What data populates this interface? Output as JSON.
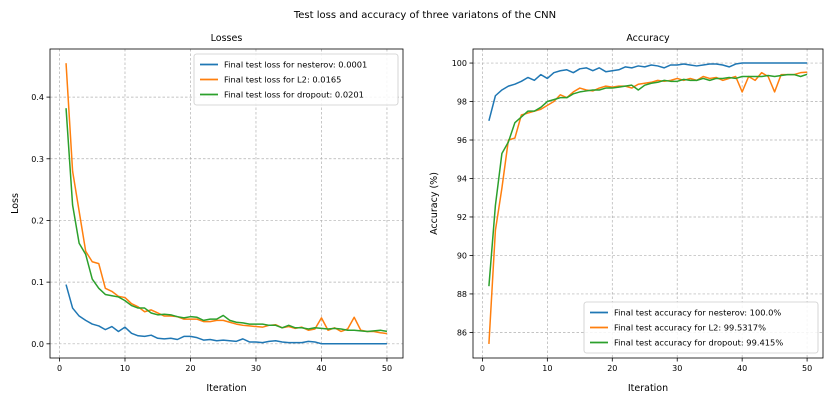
{
  "suptitle": "Test loss and accuracy of three variatons of the CNN",
  "colors": {
    "nesterov": "#1f77b4",
    "l2": "#ff7f0e",
    "dropout": "#2ca02c",
    "grid": "#b0b0b0"
  },
  "chart_data": [
    {
      "type": "line",
      "title": "Losses",
      "xlabel": "Iteration",
      "ylabel": "Loss",
      "xlim": [
        -1.45,
        52.45
      ],
      "ylim": [
        -0.023,
        0.478
      ],
      "xticks": [
        0,
        10,
        20,
        30,
        40,
        50
      ],
      "yticks": [
        0.0,
        0.1,
        0.2,
        0.3,
        0.4
      ],
      "ytick_labels": [
        "0.0",
        "0.1",
        "0.2",
        "0.3",
        "0.4"
      ],
      "grid": true,
      "legend": "upper right",
      "x": [
        1,
        2,
        3,
        4,
        5,
        6,
        7,
        8,
        9,
        10,
        11,
        12,
        13,
        14,
        15,
        16,
        17,
        18,
        19,
        20,
        21,
        22,
        23,
        24,
        25,
        26,
        27,
        28,
        29,
        30,
        31,
        32,
        33,
        34,
        35,
        36,
        37,
        38,
        39,
        40,
        41,
        42,
        43,
        44,
        45,
        46,
        47,
        48,
        49,
        50
      ],
      "series": [
        {
          "name": "Final test loss for nesterov: 0.0001",
          "key": "nesterov",
          "values": [
            0.096,
            0.058,
            0.045,
            0.038,
            0.032,
            0.029,
            0.023,
            0.028,
            0.02,
            0.027,
            0.017,
            0.013,
            0.012,
            0.014,
            0.009,
            0.008,
            0.009,
            0.007,
            0.012,
            0.012,
            0.01,
            0.006,
            0.007,
            0.005,
            0.006,
            0.005,
            0.004,
            0.008,
            0.003,
            0.003,
            0.002,
            0.004,
            0.005,
            0.003,
            0.002,
            0.002,
            0.002,
            0.004,
            0.003,
            0.0001,
            0.0001,
            0.0001,
            0.0001,
            0.0001,
            0.0001,
            0.0001,
            0.0001,
            0.0001,
            0.0001,
            0.0001
          ]
        },
        {
          "name": "Final test loss for L2: 0.0165",
          "key": "l2",
          "values": [
            0.455,
            0.28,
            0.215,
            0.15,
            0.133,
            0.13,
            0.09,
            0.085,
            0.077,
            0.075,
            0.065,
            0.06,
            0.052,
            0.055,
            0.05,
            0.045,
            0.045,
            0.044,
            0.04,
            0.04,
            0.04,
            0.036,
            0.036,
            0.038,
            0.038,
            0.035,
            0.032,
            0.03,
            0.029,
            0.028,
            0.027,
            0.03,
            0.031,
            0.026,
            0.028,
            0.025,
            0.027,
            0.022,
            0.024,
            0.042,
            0.022,
            0.026,
            0.02,
            0.024,
            0.043,
            0.022,
            0.02,
            0.02,
            0.018,
            0.0165
          ]
        },
        {
          "name": "Final test loss for dropout: 0.0201",
          "key": "dropout",
          "values": [
            0.382,
            0.225,
            0.163,
            0.145,
            0.105,
            0.09,
            0.08,
            0.078,
            0.076,
            0.07,
            0.062,
            0.058,
            0.058,
            0.05,
            0.047,
            0.048,
            0.047,
            0.044,
            0.042,
            0.044,
            0.043,
            0.038,
            0.04,
            0.04,
            0.046,
            0.038,
            0.035,
            0.034,
            0.032,
            0.032,
            0.032,
            0.03,
            0.03,
            0.026,
            0.03,
            0.026,
            0.026,
            0.024,
            0.026,
            0.025,
            0.024,
            0.025,
            0.024,
            0.022,
            0.022,
            0.021,
            0.02,
            0.021,
            0.022,
            0.0201
          ]
        }
      ]
    },
    {
      "type": "line",
      "title": "Accuracy",
      "xlabel": "Iteration",
      "ylabel": "Accuracy (%)",
      "xlim": [
        -1.45,
        52.45
      ],
      "ylim": [
        84.67,
        100.73
      ],
      "xticks": [
        0,
        10,
        20,
        30,
        40,
        50
      ],
      "yticks": [
        86,
        88,
        90,
        92,
        94,
        96,
        98,
        100
      ],
      "ytick_labels": [
        "86",
        "88",
        "90",
        "92",
        "94",
        "96",
        "98",
        "100"
      ],
      "grid": true,
      "legend": "lower right",
      "x": [
        1,
        2,
        3,
        4,
        5,
        6,
        7,
        8,
        9,
        10,
        11,
        12,
        13,
        14,
        15,
        16,
        17,
        18,
        19,
        20,
        21,
        22,
        23,
        24,
        25,
        26,
        27,
        28,
        29,
        30,
        31,
        32,
        33,
        34,
        35,
        36,
        37,
        38,
        39,
        40,
        41,
        42,
        43,
        44,
        45,
        46,
        47,
        48,
        49,
        50
      ],
      "series": [
        {
          "name": "Final test accuracy for nesterov: 100.0%",
          "key": "nesterov",
          "values": [
            97.0,
            98.3,
            98.6,
            98.8,
            98.9,
            99.05,
            99.25,
            99.1,
            99.4,
            99.2,
            99.5,
            99.6,
            99.65,
            99.5,
            99.7,
            99.75,
            99.6,
            99.75,
            99.55,
            99.6,
            99.65,
            99.8,
            99.75,
            99.85,
            99.8,
            99.9,
            99.85,
            99.75,
            99.9,
            99.9,
            99.95,
            99.9,
            99.85,
            99.9,
            99.95,
            99.95,
            99.9,
            99.8,
            99.95,
            100.0,
            100.0,
            100.0,
            100.0,
            100.0,
            100.0,
            100.0,
            100.0,
            100.0,
            100.0,
            100.0
          ]
        },
        {
          "name": "Final test accuracy for L2: 99.5317%",
          "key": "l2",
          "values": [
            85.4,
            91.3,
            93.5,
            96.0,
            96.1,
            97.3,
            97.4,
            97.5,
            97.6,
            97.8,
            98.0,
            98.35,
            98.2,
            98.5,
            98.7,
            98.6,
            98.55,
            98.7,
            98.8,
            98.75,
            98.8,
            98.8,
            98.7,
            98.9,
            98.95,
            99.0,
            99.1,
            99.05,
            99.1,
            99.2,
            99.1,
            99.2,
            99.1,
            99.3,
            99.2,
            99.25,
            99.1,
            99.2,
            99.3,
            98.5,
            99.3,
            99.1,
            99.5,
            99.3,
            98.5,
            99.4,
            99.4,
            99.4,
            99.5,
            99.53
          ]
        },
        {
          "name": "Final test accuracy for dropout: 99.415%",
          "key": "dropout",
          "values": [
            88.4,
            92.6,
            95.3,
            95.9,
            96.9,
            97.2,
            97.5,
            97.5,
            97.7,
            98.0,
            98.1,
            98.2,
            98.2,
            98.4,
            98.5,
            98.55,
            98.6,
            98.6,
            98.7,
            98.7,
            98.75,
            98.8,
            98.85,
            98.6,
            98.85,
            98.95,
            99.0,
            99.1,
            99.05,
            99.05,
            99.15,
            99.1,
            99.1,
            99.2,
            99.1,
            99.2,
            99.2,
            99.25,
            99.2,
            99.3,
            99.3,
            99.3,
            99.3,
            99.35,
            99.3,
            99.35,
            99.4,
            99.4,
            99.3,
            99.415
          ]
        }
      ]
    }
  ]
}
